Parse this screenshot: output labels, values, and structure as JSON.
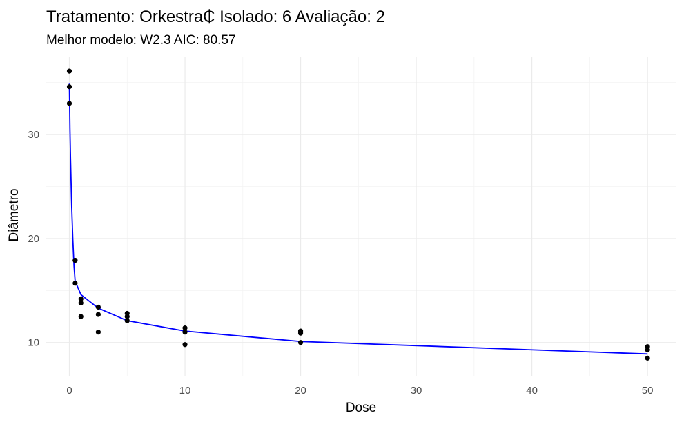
{
  "chart_data": {
    "type": "scatter",
    "title": "Tratamento: Orkestra₵ Isolado: 6 Avaliação: 2",
    "subtitle": "Melhor modelo: W2.3 AIC: 80.57",
    "xlabel": "Dose",
    "ylabel": "Diâmetro",
    "xlim": [
      -2,
      52.5
    ],
    "ylim": [
      6.8,
      37.5
    ],
    "x_ticks": [
      0,
      10,
      20,
      30,
      40,
      50
    ],
    "y_ticks": [
      10,
      20,
      30
    ],
    "grid": true,
    "legend": "none",
    "points_color": "#000000",
    "fit_color": "#0000ff",
    "series": [
      {
        "kind": "points",
        "x": [
          0,
          0,
          0,
          0.5,
          0.5,
          0.5,
          1,
          1,
          1,
          2.5,
          2.5,
          2.5,
          5,
          5,
          5,
          10,
          10,
          10,
          20,
          20,
          20,
          50,
          50,
          50
        ],
        "y": [
          36.1,
          34.6,
          33.0,
          17.9,
          17.9,
          15.7,
          14.2,
          13.8,
          12.5,
          13.4,
          12.7,
          11.0,
          12.8,
          12.5,
          12.1,
          11.4,
          11.0,
          9.8,
          11.1,
          10.9,
          10.0,
          9.6,
          9.3,
          8.5
        ]
      },
      {
        "kind": "fit-line",
        "x": [
          0,
          0.05,
          0.1,
          0.2,
          0.3,
          0.4,
          0.5,
          1,
          2.5,
          5,
          10,
          20,
          50
        ],
        "y": [
          34.9,
          30.6,
          27.7,
          23.1,
          19.9,
          17.4,
          15.9,
          14.6,
          13.3,
          12.1,
          11.1,
          10.1,
          8.9
        ]
      }
    ]
  }
}
